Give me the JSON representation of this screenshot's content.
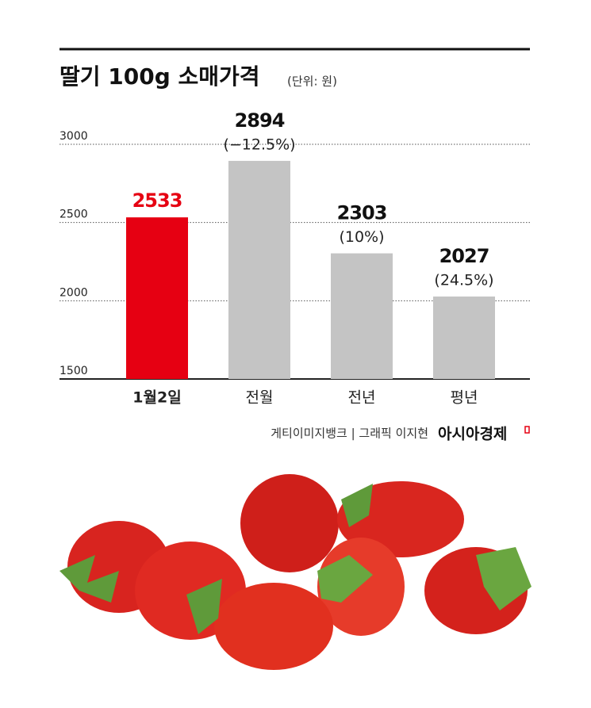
{
  "chart_data": {
    "type": "bar",
    "title": "딸기 100g 소매가격",
    "subtitle": "(단위: 원)",
    "categories": [
      "1월2일",
      "전월",
      "전년",
      "평년"
    ],
    "values": [
      2533,
      2894,
      2303,
      2027
    ],
    "change_labels": [
      null,
      "(−12.5%)",
      "(10%)",
      "(24.5%)"
    ],
    "colors": [
      "#e60012",
      "#c4c4c4",
      "#c4c4c4",
      "#c4c4c4"
    ],
    "value_label_colors": [
      "#e60012",
      "#111111",
      "#111111",
      "#111111"
    ],
    "ylim": [
      1500,
      3000
    ],
    "yticks": [
      1500,
      2000,
      2500,
      3000
    ],
    "grid": true,
    "source": "게티이미지뱅크 | 그래픽 이지현",
    "publisher": "아시아경제"
  }
}
